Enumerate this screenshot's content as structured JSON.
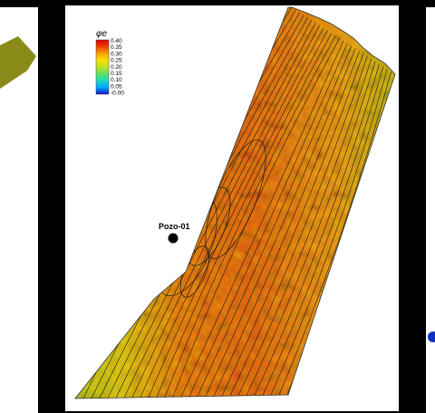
{
  "legend": {
    "title": "φe",
    "ticks": [
      "0.40",
      "0.35",
      "0.30",
      "0.25",
      "0.20",
      "0.15",
      "0.10",
      "0.05",
      "-0.00"
    ],
    "colors": [
      "#1010c8",
      "#00a8ff",
      "#20d8c0",
      "#60e060",
      "#c0e020",
      "#f8e000",
      "#f8a000",
      "#f04000",
      "#d80000"
    ]
  },
  "well": {
    "label": "Pozo-01",
    "marker_color": "#000000"
  },
  "palette": {
    "panel_background": "#ffffff",
    "frame_background": "#000000",
    "contour_color": "#1a1a1a",
    "left_fragment_fill": "#8a8a18",
    "right_fragment_marker": "#1030c0"
  }
}
